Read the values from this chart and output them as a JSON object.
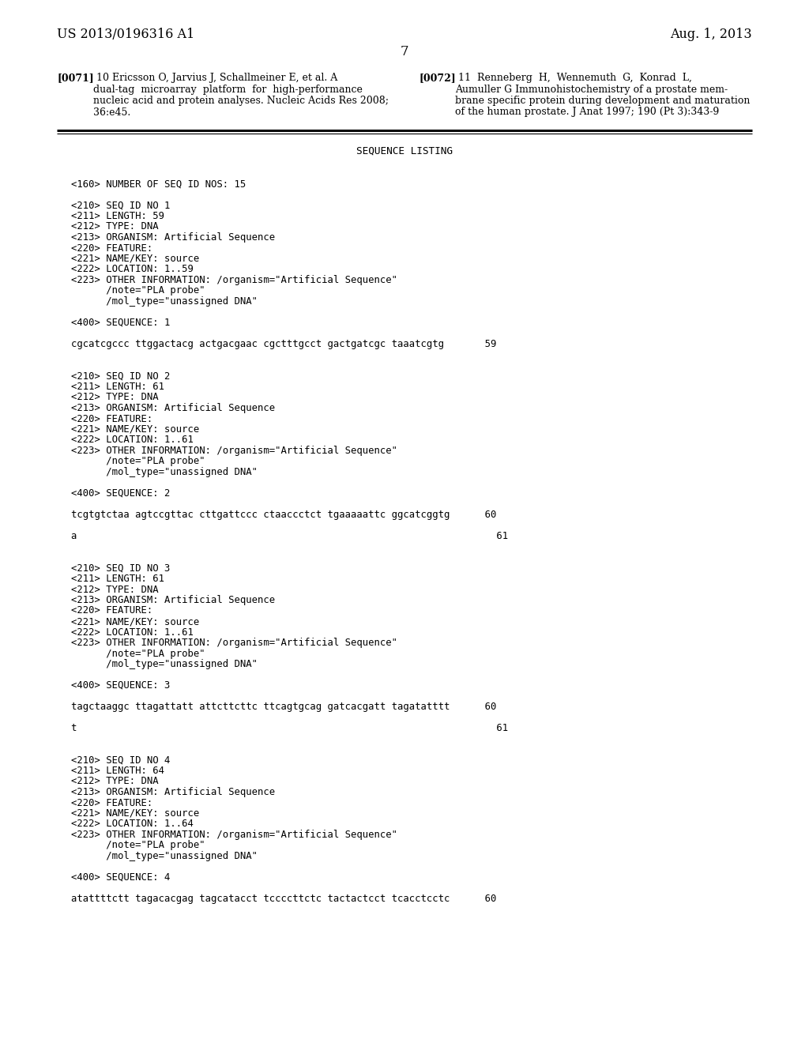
{
  "bg_color": "#ffffff",
  "header_left": "US 2013/0196316 A1",
  "header_right": "Aug. 1, 2013",
  "page_number": "7",
  "ref71_lines": [
    "[0071]  10 Ericsson O, Jarvius J, Schallmeiner E, et al. A",
    "dual-tag  microarray  platform  for  high-performance",
    "nucleic acid and protein analyses. Nucleic Acids Res 2008;",
    "36:e45."
  ],
  "ref72_lines": [
    "[0072]  11  Renneberg  H,  Wennemuth  G,  Konrad  L,",
    "Aumuller G Immunohistochemistry of a prostate mem-",
    "brane specific protein during development and maturation",
    "of the human prostate. J Anat 1997; 190 (Pt 3):343-9"
  ],
  "seq_listing_title": "SEQUENCE LISTING",
  "body_lines": [
    "",
    "<160> NUMBER OF SEQ ID NOS: 15",
    "",
    "<210> SEQ ID NO 1",
    "<211> LENGTH: 59",
    "<212> TYPE: DNA",
    "<213> ORGANISM: Artificial Sequence",
    "<220> FEATURE:",
    "<221> NAME/KEY: source",
    "<222> LOCATION: 1..59",
    "<223> OTHER INFORMATION: /organism=\"Artificial Sequence\"",
    "      /note=\"PLA probe\"",
    "      /mol_type=\"unassigned DNA\"",
    "",
    "<400> SEQUENCE: 1",
    "",
    "cgcatcgccc ttggactacg actgacgaac cgctttgcct gactgatcgc taaatcgtg       59",
    "",
    "",
    "<210> SEQ ID NO 2",
    "<211> LENGTH: 61",
    "<212> TYPE: DNA",
    "<213> ORGANISM: Artificial Sequence",
    "<220> FEATURE:",
    "<221> NAME/KEY: source",
    "<222> LOCATION: 1..61",
    "<223> OTHER INFORMATION: /organism=\"Artificial Sequence\"",
    "      /note=\"PLA probe\"",
    "      /mol_type=\"unassigned DNA\"",
    "",
    "<400> SEQUENCE: 2",
    "",
    "tcgtgtctaa agtccgttac cttgattccc ctaaccctct tgaaaaattc ggcatcggtg      60",
    "",
    "a                                                                        61",
    "",
    "",
    "<210> SEQ ID NO 3",
    "<211> LENGTH: 61",
    "<212> TYPE: DNA",
    "<213> ORGANISM: Artificial Sequence",
    "<220> FEATURE:",
    "<221> NAME/KEY: source",
    "<222> LOCATION: 1..61",
    "<223> OTHER INFORMATION: /organism=\"Artificial Sequence\"",
    "      /note=\"PLA probe\"",
    "      /mol_type=\"unassigned DNA\"",
    "",
    "<400> SEQUENCE: 3",
    "",
    "tagctaaggc ttagattatt attcttcttc ttcagtgcag gatcacgatt tagatatttt      60",
    "",
    "t                                                                        61",
    "",
    "",
    "<210> SEQ ID NO 4",
    "<211> LENGTH: 64",
    "<212> TYPE: DNA",
    "<213> ORGANISM: Artificial Sequence",
    "<220> FEATURE:",
    "<221> NAME/KEY: source",
    "<222> LOCATION: 1..64",
    "<223> OTHER INFORMATION: /organism=\"Artificial Sequence\"",
    "      /note=\"PLA probe\"",
    "      /mol_type=\"unassigned DNA\"",
    "",
    "<400> SEQUENCE: 4",
    "",
    "atattttctt tagacacgag tagcatacct tccccttctc tactactcct tcacctcctc      60"
  ]
}
